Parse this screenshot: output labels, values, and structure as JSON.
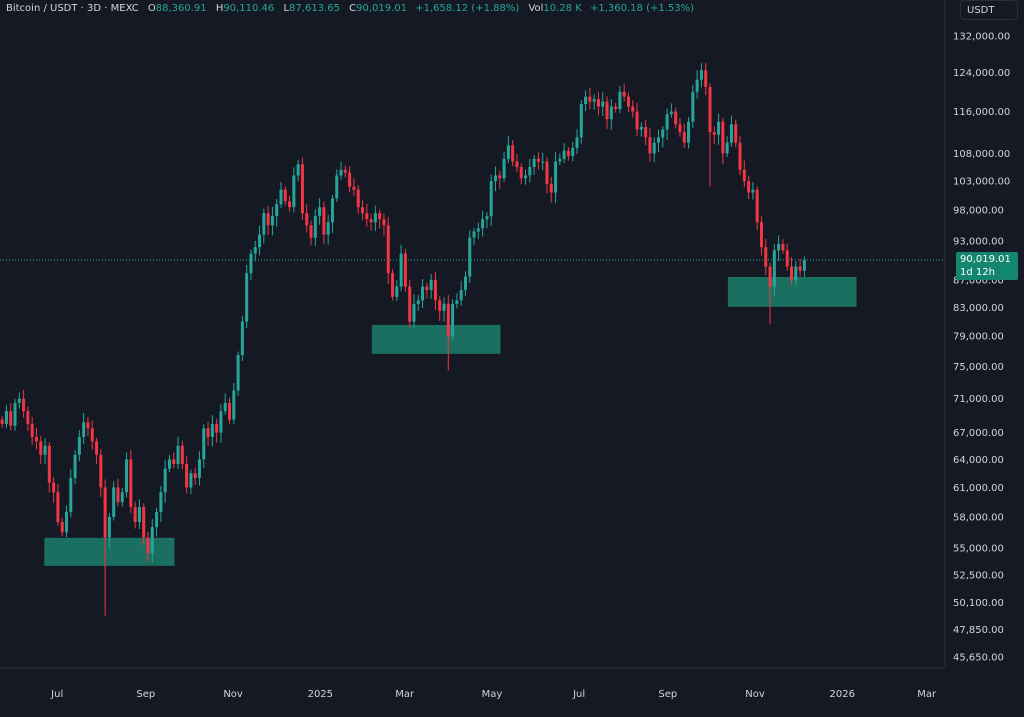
{
  "header": {
    "symbol": "Bitcoin / USDT · 3D · MEXC",
    "o_label": "O",
    "open": "88,360.91",
    "h_label": "H",
    "high": "90,110.46",
    "l_label": "L",
    "low": "87,613.65",
    "c_label": "C",
    "close": "90,019.01",
    "change": "+1,658.12 (+1.88%)",
    "vol_label": "Vol",
    "volume": "10.28 K",
    "vol_change": "+1,360.18 (+1.53%)"
  },
  "currency_button": "USDT",
  "price_tag": {
    "price": "90,019.01",
    "countdown": "1d 12h"
  },
  "colors": {
    "background": "#151924",
    "up": "#26a69a",
    "down": "#f23645",
    "zone": "#1b7f6c",
    "price_line": "#26a69a"
  },
  "chart_data": {
    "type": "candlestick",
    "scale": "log",
    "ylim": [
      45650,
      132000
    ],
    "timeframe": "3D",
    "start_date": "2024-05-22",
    "grid": false,
    "y_ticks": [
      "132,000.00",
      "124,000.00",
      "116,000.00",
      "108,000.00",
      "103,000.00",
      "98,000.00",
      "93,000.00",
      "87,000.00",
      "83,000.00",
      "79,000.00",
      "75,000.00",
      "71,000.00",
      "67,000.00",
      "64,000.00",
      "61,000.00",
      "58,000.00",
      "55,000.00",
      "52,500.00",
      "50,100.00",
      "47,850.00",
      "45,650.00"
    ],
    "x_ticks": [
      {
        "label": "Jul",
        "date": "2024-07-01"
      },
      {
        "label": "Sep",
        "date": "2024-09-01"
      },
      {
        "label": "Nov",
        "date": "2024-11-01"
      },
      {
        "label": "2025",
        "date": "2025-01-01"
      },
      {
        "label": "Mar",
        "date": "2025-03-01"
      },
      {
        "label": "May",
        "date": "2025-05-01"
      },
      {
        "label": "Jul",
        "date": "2025-07-01"
      },
      {
        "label": "Sep",
        "date": "2025-09-01"
      },
      {
        "label": "Nov",
        "date": "2025-11-01"
      },
      {
        "label": "2026",
        "date": "2026-01-01"
      },
      {
        "label": "Mar",
        "date": "2026-03-01"
      }
    ],
    "first_open": 68500,
    "closes": [
      68000,
      69500,
      67800,
      70500,
      71000,
      69500,
      68000,
      66500,
      66000,
      64500,
      65500,
      61500,
      60500,
      57500,
      56500,
      58500,
      62000,
      64500,
      66500,
      68200,
      67500,
      66000,
      64500,
      61000,
      56000,
      58000,
      61000,
      59500,
      60500,
      64000,
      59000,
      57500,
      59000,
      56000,
      54500,
      57000,
      58500,
      60500,
      63000,
      64000,
      63500,
      65500,
      63500,
      61000,
      62500,
      62000,
      64000,
      67500,
      66500,
      68000,
      67000,
      69500,
      70500,
      68500,
      72000,
      76500,
      81000,
      88000,
      91000,
      92000,
      94000,
      97500,
      95500,
      97000,
      99000,
      101500,
      99500,
      98500,
      104000,
      106000,
      97500,
      95500,
      93500,
      97000,
      98500,
      94000,
      96000,
      100000,
      104000,
      105000,
      104500,
      102000,
      101500,
      98500,
      97500,
      96500,
      96000,
      97500,
      96500,
      95500,
      88000,
      84500,
      86000,
      91000,
      86000,
      81000,
      83500,
      84000,
      86000,
      85500,
      87000,
      84000,
      82500,
      83500,
      79000,
      83500,
      84000,
      85500,
      87500,
      93500,
      94500,
      95000,
      96500,
      97000,
      103000,
      104000,
      103500,
      107000,
      109500,
      106500,
      105500,
      103500,
      104000,
      105500,
      107000,
      106500,
      106500,
      102500,
      101000,
      106500,
      107000,
      108500,
      107500,
      109000,
      111000,
      117500,
      119000,
      118000,
      118500,
      117000,
      118000,
      114500,
      117000,
      116500,
      120000,
      119000,
      117000,
      116000,
      112500,
      113000,
      111000,
      108000,
      110000,
      111000,
      112500,
      115500,
      116000,
      113500,
      112000,
      110000,
      114000,
      120000,
      122500,
      124500,
      121000,
      112000,
      111500,
      114000,
      108000,
      110000,
      113500,
      110000,
      105000,
      103000,
      101000,
      101500,
      96000,
      92000,
      89000,
      86000,
      91500,
      92500,
      91500,
      89000,
      87000,
      89000,
      88360.91,
      90019.01
    ],
    "wick_extremes": [
      {
        "index": 24,
        "low": 49000
      },
      {
        "index": 104,
        "low": 74500
      },
      {
        "index": 163,
        "high": 126000
      },
      {
        "index": 165,
        "low": 102000
      },
      {
        "index": 179,
        "low": 80600
      }
    ],
    "last_price": 90019.01,
    "zones": [
      {
        "start": "2024-06-22",
        "end": "2024-09-21",
        "top": 55970,
        "bottom": 53350
      },
      {
        "start": "2025-02-06",
        "end": "2025-05-07",
        "top": 80540,
        "bottom": 76660
      },
      {
        "start": "2025-10-13",
        "end": "2026-01-11",
        "top": 87420,
        "bottom": 83070
      }
    ]
  }
}
